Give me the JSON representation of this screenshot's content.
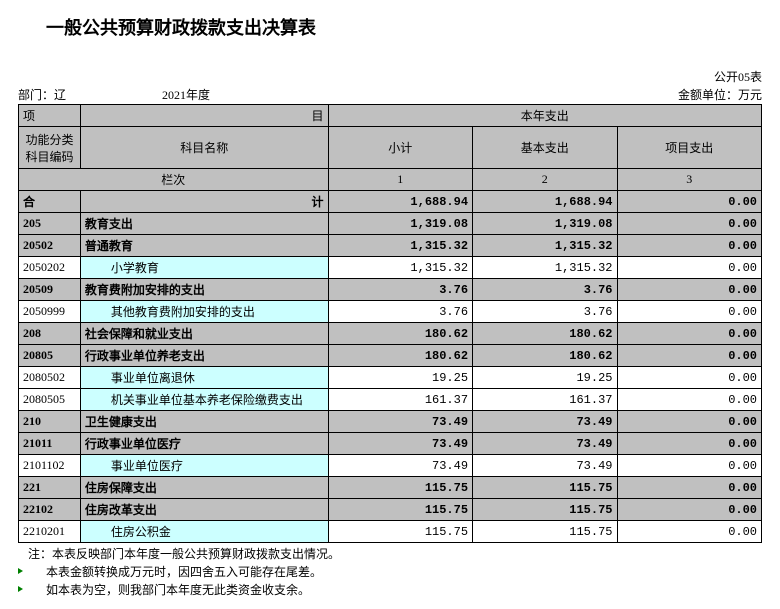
{
  "title": "一般公共预算财政拨款支出决算表",
  "meta": {
    "dept_label": "部门：辽",
    "year": "2021年度",
    "form_no": "公开05表",
    "unit": "金额单位：万元"
  },
  "headers": {
    "project": "项",
    "mu": "目",
    "this_year": "本年支出",
    "func_code": "功能分类\n科目编码",
    "subj_name": "科目名称",
    "subtotal": "小计",
    "basic": "基本支出",
    "project_exp": "项目支出",
    "lanci": "栏次",
    "c1": "1",
    "c2": "2",
    "c3": "3"
  },
  "total_row": {
    "label_a": "合",
    "label_b": "计",
    "v1": "1,688.94",
    "v2": "1,688.94",
    "v3": "0.00"
  },
  "rows": [
    {
      "code": "205",
      "name": "教育支出",
      "v1": "1,319.08",
      "v2": "1,319.08",
      "v3": "0.00",
      "style": "gray"
    },
    {
      "code": "20502",
      "name": "普通教育",
      "v1": "1,315.32",
      "v2": "1,315.32",
      "v3": "0.00",
      "style": "gray"
    },
    {
      "code": "2050202",
      "name": "小学教育",
      "v1": "1,315.32",
      "v2": "1,315.32",
      "v3": "0.00",
      "style": "cyan"
    },
    {
      "code": "20509",
      "name": "教育费附加安排的支出",
      "v1": "3.76",
      "v2": "3.76",
      "v3": "0.00",
      "style": "gray"
    },
    {
      "code": "2050999",
      "name": "其他教育费附加安排的支出",
      "v1": "3.76",
      "v2": "3.76",
      "v3": "0.00",
      "style": "cyan"
    },
    {
      "code": "208",
      "name": "社会保障和就业支出",
      "v1": "180.62",
      "v2": "180.62",
      "v3": "0.00",
      "style": "gray"
    },
    {
      "code": "20805",
      "name": "行政事业单位养老支出",
      "v1": "180.62",
      "v2": "180.62",
      "v3": "0.00",
      "style": "gray"
    },
    {
      "code": "2080502",
      "name": "事业单位离退休",
      "v1": "19.25",
      "v2": "19.25",
      "v3": "0.00",
      "style": "cyan"
    },
    {
      "code": "2080505",
      "name": "机关事业单位基本养老保险缴费支出",
      "v1": "161.37",
      "v2": "161.37",
      "v3": "0.00",
      "style": "cyan"
    },
    {
      "code": "210",
      "name": "卫生健康支出",
      "v1": "73.49",
      "v2": "73.49",
      "v3": "0.00",
      "style": "gray"
    },
    {
      "code": "21011",
      "name": "行政事业单位医疗",
      "v1": "73.49",
      "v2": "73.49",
      "v3": "0.00",
      "style": "gray"
    },
    {
      "code": "2101102",
      "name": "事业单位医疗",
      "v1": "73.49",
      "v2": "73.49",
      "v3": "0.00",
      "style": "cyan"
    },
    {
      "code": "221",
      "name": "住房保障支出",
      "v1": "115.75",
      "v2": "115.75",
      "v3": "0.00",
      "style": "gray"
    },
    {
      "code": "22102",
      "name": "住房改革支出",
      "v1": "115.75",
      "v2": "115.75",
      "v3": "0.00",
      "style": "gray"
    },
    {
      "code": "2210201",
      "name": "住房公积金",
      "v1": "115.75",
      "v2": "115.75",
      "v3": "0.00",
      "style": "cyan"
    }
  ],
  "notes": [
    "注：本表反映部门本年度一般公共预算财政拨款支出情况。",
    "本表金额转换成万元时，因四舍五入可能存在尾差。",
    "如本表为空，则我部门本年度无此类资金收支余。"
  ]
}
